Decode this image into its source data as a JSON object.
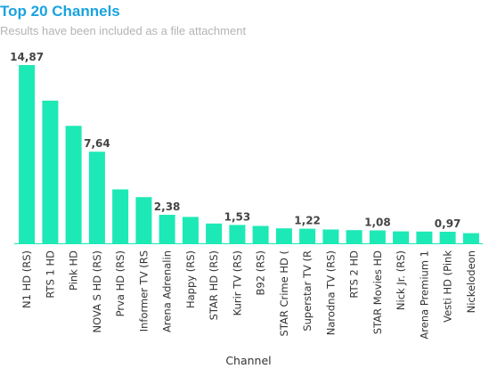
{
  "header": {
    "title": "Top 20 Channels",
    "subtitle": "Results have been included as a file attachment"
  },
  "colors": {
    "title": "#1aa3df",
    "bar": "#1de9b6",
    "baseline": "#1de9b6"
  },
  "chart_data": {
    "type": "bar",
    "title": "Top 20 Channels",
    "subtitle": "Results have been included as a file attachment",
    "xlabel": "Channel",
    "ylabel": "",
    "ylim": [
      0,
      16
    ],
    "grid": false,
    "categories": [
      "N1 HD (RS)",
      "RTS 1 HD",
      "Pink HD",
      "NOVA S HD (RS)",
      "Prva HD (RS)",
      "Informer TV (RS",
      "Arena Adrenalin",
      "Happy (RS)",
      "STAR HD (RS)",
      "Kurir TV (RS)",
      "B92 (RS)",
      "STAR Crime HD (",
      "Superstar TV (R",
      "Narodna TV (RS)",
      "RTS 2 HD",
      "STAR Movies HD",
      "Nick Jr. (RS)",
      "Arena Premium 1",
      "Vesti HD (Pink",
      "Nickelodeon"
    ],
    "values": [
      14.87,
      11.9,
      9.8,
      7.64,
      4.5,
      3.85,
      2.38,
      2.2,
      1.65,
      1.53,
      1.45,
      1.25,
      1.22,
      1.15,
      1.1,
      1.08,
      1.0,
      0.98,
      0.97,
      0.85
    ],
    "data_labels": [
      {
        "index": 0,
        "text": "14,87"
      },
      {
        "index": 3,
        "text": "7,64"
      },
      {
        "index": 6,
        "text": "2,38"
      },
      {
        "index": 9,
        "text": "1,53"
      },
      {
        "index": 12,
        "text": "1,22"
      },
      {
        "index": 15,
        "text": "1,08"
      },
      {
        "index": 18,
        "text": "0,97"
      }
    ]
  }
}
